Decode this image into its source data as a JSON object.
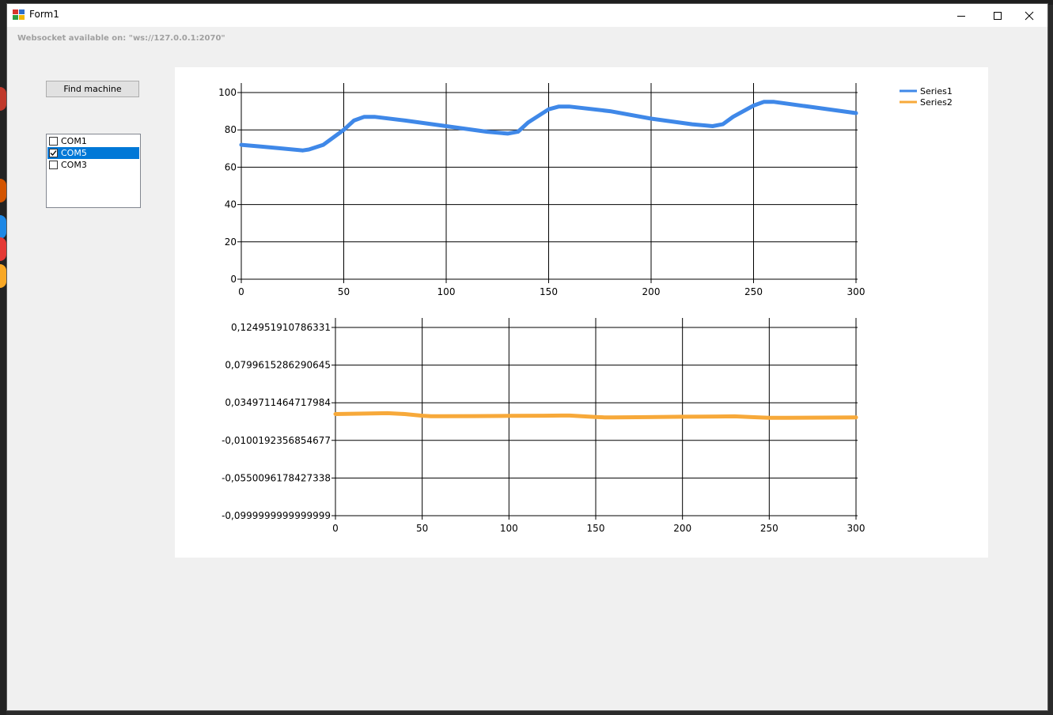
{
  "window": {
    "title": "Form1",
    "controls": {
      "minimize": "minimize",
      "maximize": "maximize",
      "close": "close"
    }
  },
  "websocket_label": "Websocket available on: \"ws://127.0.0.1:2070\"",
  "find_button_label": "Find machine",
  "ports": [
    {
      "label": "COM1",
      "checked": false,
      "selected": false
    },
    {
      "label": "COM5",
      "checked": true,
      "selected": true
    },
    {
      "label": "COM3",
      "checked": false,
      "selected": false
    }
  ],
  "legend": [
    {
      "name": "Series1",
      "color": "#3f88e8"
    },
    {
      "name": "Series2",
      "color": "#f7a93a"
    }
  ],
  "chart_data": [
    {
      "type": "line",
      "series": [
        {
          "name": "Series1",
          "color": "#3f88e8",
          "x": [
            0,
            10,
            20,
            30,
            33,
            40,
            50,
            55,
            60,
            65,
            80,
            100,
            120,
            130,
            135,
            140,
            150,
            155,
            160,
            180,
            200,
            220,
            230,
            235,
            240,
            250,
            255,
            260,
            280,
            300
          ],
          "y": [
            72,
            71,
            70,
            69,
            69.5,
            72,
            80,
            85,
            87,
            87,
            85,
            82,
            79,
            78,
            79,
            84,
            91,
            92.5,
            92.5,
            90,
            86,
            83,
            82,
            83,
            87,
            93,
            95,
            95,
            92,
            89
          ]
        }
      ],
      "x_ticks": [
        "0",
        "50",
        "100",
        "150",
        "200",
        "250",
        "300"
      ],
      "y_ticks": [
        "0",
        "20",
        "40",
        "60",
        "80",
        "100"
      ],
      "xlim": [
        0,
        300
      ],
      "ylim": [
        0,
        100
      ],
      "grid": true
    },
    {
      "type": "line",
      "series": [
        {
          "name": "Series2",
          "color": "#f7a93a",
          "x": [
            0,
            10,
            20,
            30,
            40,
            50,
            55,
            60,
            80,
            100,
            120,
            130,
            135,
            150,
            155,
            160,
            180,
            200,
            220,
            230,
            240,
            250,
            260,
            280,
            300
          ],
          "y": [
            0.0215,
            0.0218,
            0.0222,
            0.0225,
            0.0215,
            0.0195,
            0.0188,
            0.0188,
            0.019,
            0.0193,
            0.0195,
            0.0197,
            0.0197,
            0.018,
            0.0175,
            0.0175,
            0.0178,
            0.0182,
            0.0185,
            0.0187,
            0.0178,
            0.017,
            0.017,
            0.0172,
            0.0175
          ]
        }
      ],
      "x_ticks": [
        "0",
        "50",
        "100",
        "150",
        "200",
        "250",
        "300"
      ],
      "y_ticks": [
        "0,124951910786331",
        "0,0799615286290645",
        "0,0349711464717984",
        "-0,0100192356854677",
        "-0,0550096178427338",
        "-0,0999999999999999"
      ],
      "xlim": [
        0,
        300
      ],
      "ylim": [
        -0.0999999999999999,
        0.124951910786331
      ],
      "grid": true
    }
  ]
}
